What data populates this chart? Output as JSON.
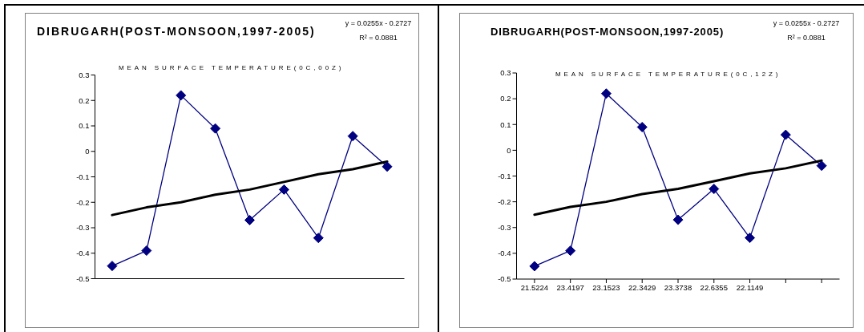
{
  "chart_data": [
    {
      "type": "line",
      "title": "DIBRUGARH(POST-MONSOON,1997-2005)",
      "subtitle": "MEAN SURFACE TEMPERATURE(0C,00Z)",
      "annotations": [
        "y = 0.0255x - 0.2727",
        "R² = 0.0881"
      ],
      "categories": [
        null,
        null,
        null,
        null,
        null,
        null,
        null,
        null,
        null
      ],
      "series": [
        {
          "color": "#000080",
          "values": [
            -0.45,
            -0.39,
            0.22,
            0.09,
            -0.27,
            -0.15,
            -0.34,
            0.06,
            -0.06
          ]
        },
        {
          "type": "line",
          "color": "#000000",
          "marker": "none",
          "values": [
            -0.25,
            -0.22,
            -0.2,
            -0.17,
            -0.15,
            -0.12,
            -0.09,
            -0.07,
            -0.04
          ]
        }
      ],
      "ylim": [
        -0.5,
        0.3
      ],
      "yticks": [
        -0.5,
        -0.4,
        -0.3,
        -0.2,
        -0.1,
        0,
        0.1,
        0.2,
        0.3
      ],
      "marker": "diamond",
      "tick_labels": "y"
    },
    {
      "type": "line",
      "title": "DIBRUGARH(POST-MONSOON,1997-2005)",
      "subtitle": "MEAN SURFACE TEMPERATURE(0C,12Z)",
      "annotations": [
        "y = 0.0255x - 0.2727",
        "R² = 0.0881"
      ],
      "categories": [
        "21.5224",
        "23.4197",
        "23.1523",
        "22.3429",
        "23.3738",
        "22.6355",
        "22.1149",
        null,
        null
      ],
      "series": [
        {
          "color": "#000080",
          "values": [
            -0.45,
            -0.39,
            0.22,
            0.09,
            -0.27,
            -0.15,
            -0.34,
            0.06,
            -0.06
          ]
        },
        {
          "type": "line",
          "color": "#000000",
          "marker": "none",
          "values": [
            -0.25,
            -0.22,
            -0.2,
            -0.17,
            -0.15,
            -0.12,
            -0.09,
            -0.07,
            -0.04
          ]
        }
      ],
      "ylim": [
        -0.5,
        0.3
      ],
      "yticks": [
        -0.5,
        -0.4,
        -0.3,
        -0.2,
        -0.1,
        0,
        0.1,
        0.2,
        0.3
      ],
      "marker": "diamond"
    }
  ]
}
